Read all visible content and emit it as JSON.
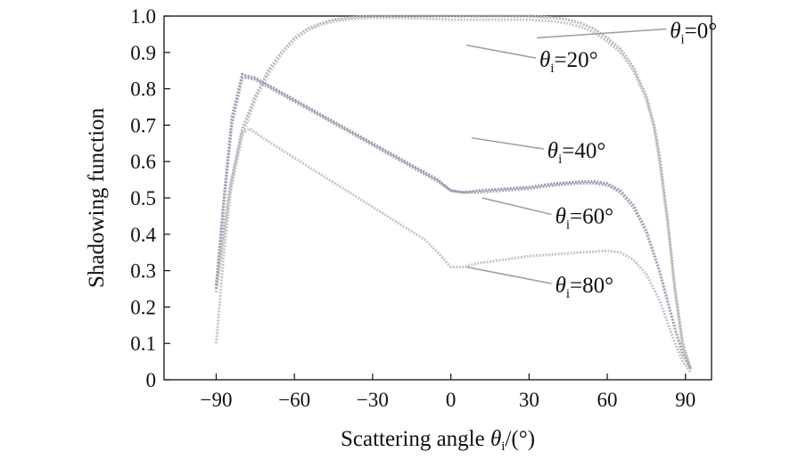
{
  "chart_data": {
    "type": "line",
    "title": "",
    "xlabel": "Scattering angle θi/(°)",
    "xlabel_parts": {
      "main": "Scattering angle ",
      "symbol": "θ",
      "sub": "i",
      "tail": "/(°)"
    },
    "ylabel": "Shadowing function",
    "xlim": [
      -110,
      100
    ],
    "ylim": [
      0,
      1.0
    ],
    "xticks": [
      -90,
      -60,
      -30,
      0,
      30,
      60,
      90
    ],
    "xtick_labels": [
      "−90",
      "−60",
      "−30",
      "0",
      "30",
      "60",
      "90"
    ],
    "yticks": [
      0,
      0.1,
      0.2,
      0.3,
      0.4,
      0.5,
      0.6,
      0.7,
      0.8,
      0.9,
      1.0
    ],
    "ytick_labels": [
      "0",
      "0.1",
      "0.2",
      "0.3",
      "0.4",
      "0.5",
      "0.6",
      "0.7",
      "0.8",
      "0.9",
      "1.0"
    ],
    "grid": false,
    "series": [
      {
        "label_symbol": "θ",
        "label_sub": "i",
        "label_tail": "=0°",
        "color": "#b4b4c6",
        "x": [
          -90,
          -85,
          -80,
          -75,
          -70,
          -65,
          -60,
          -55,
          -50,
          -45,
          -40,
          -35,
          -30,
          -20,
          -10,
          0,
          10,
          20,
          30,
          40,
          45,
          50,
          55,
          60,
          65,
          70,
          75,
          78,
          80,
          83,
          86,
          89,
          92
        ],
        "y": [
          0.26,
          0.52,
          0.69,
          0.78,
          0.85,
          0.9,
          0.94,
          0.965,
          0.98,
          0.99,
          0.995,
          0.998,
          1.0,
          1.0,
          1.0,
          1.0,
          1.0,
          1.0,
          1.0,
          0.995,
          0.99,
          0.98,
          0.965,
          0.94,
          0.91,
          0.86,
          0.78,
          0.7,
          0.62,
          0.45,
          0.25,
          0.1,
          0.03
        ]
      },
      {
        "label_symbol": "θ",
        "label_sub": "i",
        "label_tail": "=20°",
        "color": "#c8c8b4",
        "x": [
          -90,
          -85,
          -80,
          -75,
          -70,
          -65,
          -60,
          -55,
          -50,
          -45,
          -40,
          -35,
          -30,
          -20,
          -10,
          0,
          10,
          20,
          30,
          40,
          45,
          50,
          55,
          60,
          65,
          70,
          75,
          78,
          80,
          83,
          86,
          89,
          92
        ],
        "y": [
          0.24,
          0.5,
          0.67,
          0.77,
          0.84,
          0.895,
          0.935,
          0.96,
          0.975,
          0.985,
          0.99,
          0.993,
          0.995,
          0.995,
          0.993,
          0.99,
          0.99,
          0.99,
          0.99,
          0.985,
          0.98,
          0.97,
          0.955,
          0.93,
          0.9,
          0.85,
          0.77,
          0.69,
          0.6,
          0.44,
          0.24,
          0.09,
          0.03
        ]
      },
      {
        "label_symbol": "θ",
        "label_sub": "i",
        "label_tail": "=40°",
        "color": "#9a9ab0",
        "x": [
          -90,
          -87,
          -84,
          -80,
          -78,
          -75,
          -70,
          -60,
          -50,
          -40,
          -30,
          -20,
          -10,
          -5,
          0,
          5,
          10,
          20,
          30,
          40,
          50,
          55,
          60,
          65,
          70,
          75,
          80,
          83,
          86,
          89,
          92
        ],
        "y": [
          0.26,
          0.5,
          0.72,
          0.84,
          0.835,
          0.83,
          0.81,
          0.77,
          0.73,
          0.69,
          0.65,
          0.61,
          0.57,
          0.55,
          0.52,
          0.515,
          0.52,
          0.525,
          0.53,
          0.54,
          0.545,
          0.545,
          0.54,
          0.52,
          0.48,
          0.41,
          0.3,
          0.22,
          0.14,
          0.07,
          0.03
        ]
      },
      {
        "label_symbol": "θ",
        "label_sub": "i",
        "label_tail": "=60°",
        "color": "#a8a8b8",
        "x": [
          -90,
          -87,
          -84,
          -80,
          -78,
          -75,
          -70,
          -60,
          -50,
          -40,
          -30,
          -20,
          -10,
          -5,
          0,
          5,
          10,
          20,
          30,
          40,
          50,
          55,
          60,
          65,
          70,
          75,
          80,
          83,
          86,
          89,
          92
        ],
        "y": [
          0.25,
          0.49,
          0.7,
          0.83,
          0.83,
          0.825,
          0.805,
          0.765,
          0.725,
          0.685,
          0.645,
          0.605,
          0.565,
          0.545,
          0.52,
          0.515,
          0.515,
          0.52,
          0.525,
          0.535,
          0.54,
          0.54,
          0.535,
          0.515,
          0.475,
          0.405,
          0.3,
          0.22,
          0.14,
          0.07,
          0.03
        ]
      },
      {
        "label_symbol": "θ",
        "label_sub": "i",
        "label_tail": "=80°",
        "color": "#c4c4cc",
        "x": [
          -90,
          -87,
          -84,
          -80,
          -77,
          -75,
          -70,
          -60,
          -50,
          -40,
          -30,
          -20,
          -10,
          -5,
          0,
          5,
          10,
          20,
          30,
          40,
          50,
          60,
          65,
          70,
          75,
          80,
          83,
          86,
          89,
          92
        ],
        "y": [
          0.1,
          0.35,
          0.55,
          0.68,
          0.69,
          0.68,
          0.655,
          0.61,
          0.565,
          0.52,
          0.475,
          0.43,
          0.385,
          0.35,
          0.31,
          0.31,
          0.32,
          0.33,
          0.34,
          0.345,
          0.35,
          0.355,
          0.35,
          0.33,
          0.29,
          0.22,
          0.16,
          0.1,
          0.05,
          0.02
        ]
      }
    ],
    "annotations": [
      {
        "series": 0,
        "label_x": 84,
        "label_y": 0.94,
        "point_x": 33,
        "point_y": 0.94
      },
      {
        "series": 1,
        "label_x": 34,
        "label_y": 0.86,
        "point_x": 6,
        "point_y": 0.92
      },
      {
        "series": 2,
        "label_x": 37,
        "label_y": 0.61,
        "point_x": 8,
        "point_y": 0.665
      },
      {
        "series": 3,
        "label_x": 40,
        "label_y": 0.43,
        "point_x": 12,
        "point_y": 0.5
      },
      {
        "series": 4,
        "label_x": 40,
        "label_y": 0.24,
        "point_x": 6,
        "point_y": 0.31
      }
    ]
  }
}
